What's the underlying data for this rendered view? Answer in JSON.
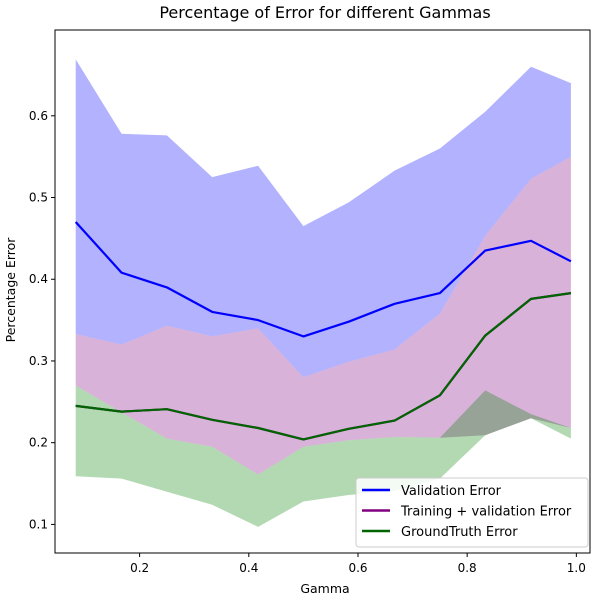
{
  "chart_data": {
    "type": "line",
    "title": "Percentage of Error for different Gammas",
    "xlabel": "Gamma",
    "ylabel": "Percentage Error",
    "xlim": [
      0.045,
      1.025
    ],
    "ylim": [
      0.065,
      0.705
    ],
    "xticks": [
      0.2,
      0.4,
      0.6,
      0.8,
      1.0
    ],
    "xtick_labels": [
      "0.2",
      "0.4",
      "0.6",
      "0.8",
      "1.0"
    ],
    "yticks": [
      0.1,
      0.2,
      0.3,
      0.4,
      0.5,
      0.6
    ],
    "ytick_labels": [
      "0.1",
      "0.2",
      "0.3",
      "0.4",
      "0.5",
      "0.6"
    ],
    "grid": false,
    "legend_position": "bottom-right",
    "x": [
      0.083,
      0.167,
      0.25,
      0.333,
      0.417,
      0.5,
      0.583,
      0.667,
      0.75,
      0.833,
      0.917,
      0.99
    ],
    "series": [
      {
        "name": "Validation Error",
        "color": "#0000ff",
        "band_color": "#0000ff",
        "band_opacity": 0.3,
        "values": [
          0.47,
          0.408,
          0.39,
          0.36,
          0.35,
          0.33,
          0.348,
          0.37,
          0.383,
          0.435,
          0.447,
          0.422
        ],
        "lower": [
          0.333,
          0.32,
          0.343,
          0.33,
          0.34,
          0.28,
          0.299,
          0.314,
          0.358,
          0.453,
          0.523,
          0.55
        ],
        "upper": [
          0.669,
          0.578,
          0.576,
          0.525,
          0.539,
          0.465,
          0.494,
          0.533,
          0.56,
          0.605,
          0.66,
          0.64
        ]
      },
      {
        "name": "Training + validation Error",
        "color": "#800080",
        "band_color": "#800080",
        "band_opacity": 0.3,
        "values": [
          0.245,
          0.238,
          0.241,
          0.228,
          0.218,
          0.204,
          0.217,
          0.227,
          0.258,
          0.331,
          0.376,
          0.383
        ],
        "lower": [
          0.27,
          0.237,
          0.205,
          0.195,
          0.161,
          0.195,
          0.203,
          0.207,
          0.206,
          0.209,
          0.23,
          0.218
        ],
        "upper": [
          0.333,
          0.32,
          0.343,
          0.33,
          0.34,
          0.28,
          0.299,
          0.314,
          0.358,
          0.453,
          0.523,
          0.55
        ]
      },
      {
        "name": "GroundTruth Error",
        "color": "#006400",
        "band_color": "#008000",
        "band_opacity": 0.3,
        "values": [
          0.245,
          0.238,
          0.241,
          0.228,
          0.218,
          0.204,
          0.217,
          0.227,
          0.258,
          0.331,
          0.376,
          0.383
        ],
        "lower": [
          0.159,
          0.156,
          0.14,
          0.124,
          0.097,
          0.128,
          0.136,
          0.141,
          0.156,
          0.209,
          0.23,
          0.205
        ],
        "upper": [
          0.27,
          0.237,
          0.205,
          0.195,
          0.161,
          0.195,
          0.203,
          0.207,
          0.206,
          0.264,
          0.235,
          0.218
        ]
      }
    ]
  }
}
